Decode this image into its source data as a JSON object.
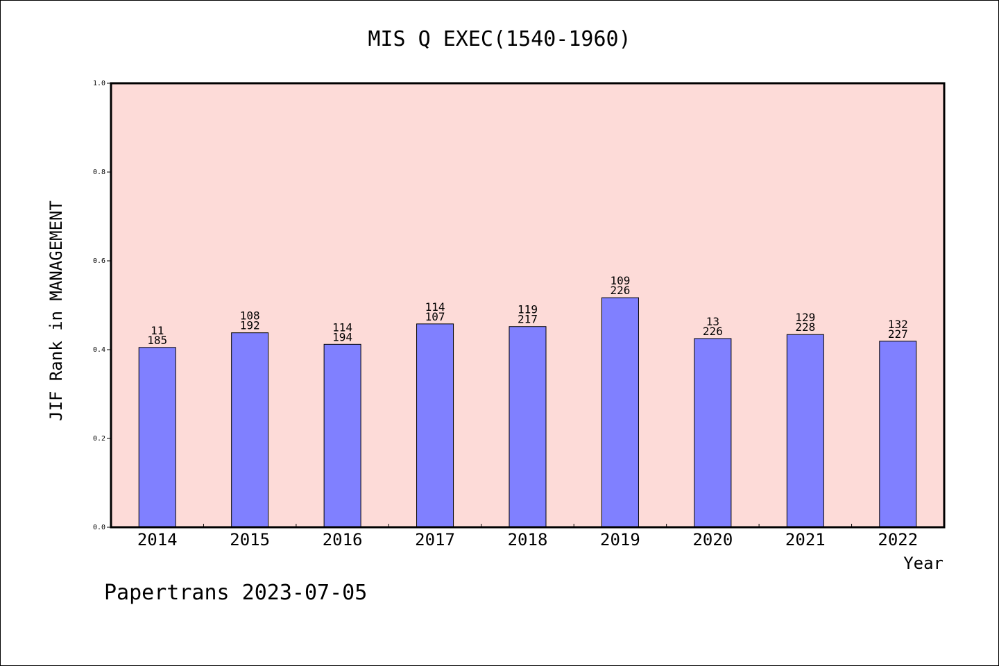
{
  "chart_data": {
    "type": "bar",
    "title": "MIS Q EXEC(1540-1960)",
    "xlabel": "Year",
    "ylabel": "JIF Rank in MANAGEMENT",
    "ylim": [
      0,
      1.0
    ],
    "yticks": [
      "0.0",
      "0.2",
      "0.4",
      "0.6",
      "0.8",
      "1.0"
    ],
    "categories": [
      "2014",
      "2015",
      "2016",
      "2017",
      "2018",
      "2019",
      "2020",
      "2021",
      "2022"
    ],
    "values": [
      0.405,
      0.438,
      0.412,
      0.458,
      0.452,
      0.517,
      0.425,
      0.434,
      0.419
    ],
    "labels_top": [
      "11",
      "108",
      "114",
      "114",
      "119",
      "109",
      "13",
      "129",
      "132"
    ],
    "labels_bottom": [
      "185",
      "192",
      "194",
      "107",
      "217",
      "226",
      "226",
      "228",
      "227"
    ],
    "grid": false,
    "colors": {
      "plot_background": "#fddbd8",
      "bar": "#8080ff",
      "bar_edge": "#000000"
    }
  },
  "footer": "Papertrans 2023-07-05"
}
